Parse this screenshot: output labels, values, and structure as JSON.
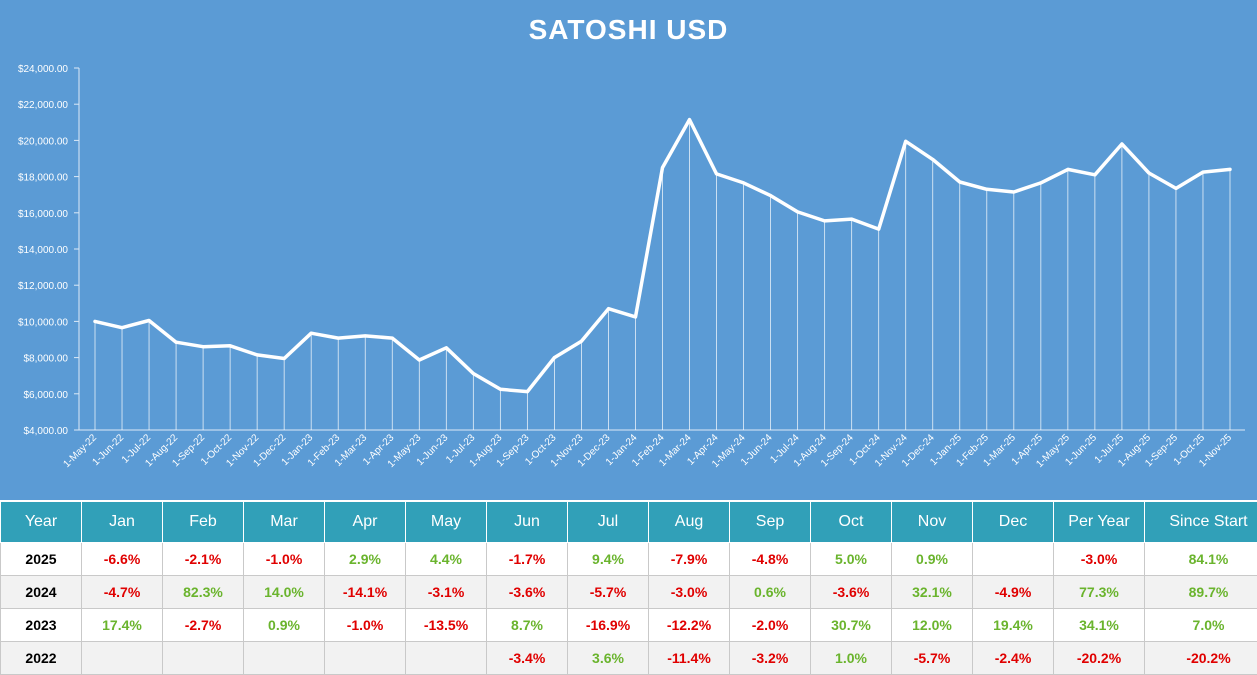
{
  "chart_data": {
    "type": "line",
    "title": "SATOSHI USD",
    "ylim": [
      4000,
      24000
    ],
    "yticks": [
      "$4,000.00",
      "$6,000.00",
      "$8,000.00",
      "$10,000.00",
      "$12,000.00",
      "$14,000.00",
      "$16,000.00",
      "$18,000.00",
      "$20,000.00",
      "$22,000.00",
      "$24,000.00"
    ],
    "x": [
      "1-May-22",
      "1-Jun-22",
      "1-Jul-22",
      "1-Aug-22",
      "1-Sep-22",
      "1-Oct-22",
      "1-Nov-22",
      "1-Dec-22",
      "1-Jan-23",
      "1-Feb-23",
      "1-Mar-23",
      "1-Apr-23",
      "1-May-23",
      "1-Jun-23",
      "1-Jul-23",
      "1-Aug-23",
      "1-Sep-23",
      "1-Oct-23",
      "1-Nov-23",
      "1-Dec-23",
      "1-Jan-24",
      "1-Feb-24",
      "1-Mar-24",
      "1-Apr-24",
      "1-May-24",
      "1-Jun-24",
      "1-Jul-24",
      "1-Aug-24",
      "1-Sep-24",
      "1-Oct-24",
      "1-Nov-24",
      "1-Dec-24",
      "1-Jan-25",
      "1-Feb-25",
      "1-Mar-25",
      "1-Apr-25",
      "1-May-25",
      "1-Jun-25",
      "1-Jul-25",
      "1-Aug-25",
      "1-Sep-25",
      "1-Oct-25",
      "1-Nov-25"
    ],
    "values": [
      10000,
      9650,
      10050,
      8850,
      8600,
      8650,
      8150,
      7950,
      9350,
      9080,
      9200,
      9080,
      7870,
      8540,
      7120,
      6250,
      6120,
      8000,
      8900,
      10700,
      10250,
      18500,
      21150,
      18150,
      17650,
      16950,
      16050,
      15550,
      15650,
      15100,
      19950,
      18950,
      17700,
      17300,
      17150,
      17650,
      18400,
      18100,
      19800,
      18200,
      17350,
      18250,
      18400
    ],
    "grid": false,
    "legend": "none"
  },
  "table": {
    "headers": [
      "Year",
      "Jan",
      "Feb",
      "Mar",
      "Apr",
      "May",
      "Jun",
      "Jul",
      "Aug",
      "Sep",
      "Oct",
      "Nov",
      "Dec",
      "Per Year",
      "Since Start"
    ],
    "rows": [
      [
        "2025",
        "-6.6%",
        "-2.1%",
        "-1.0%",
        "2.9%",
        "4.4%",
        "-1.7%",
        "9.4%",
        "-7.9%",
        "-4.8%",
        "5.0%",
        "0.9%",
        "",
        "-3.0%",
        "84.1%"
      ],
      [
        "2024",
        "-4.7%",
        "82.3%",
        "14.0%",
        "-14.1%",
        "-3.1%",
        "-3.6%",
        "-5.7%",
        "-3.0%",
        "0.6%",
        "-3.6%",
        "32.1%",
        "-4.9%",
        "77.3%",
        "89.7%"
      ],
      [
        "2023",
        "17.4%",
        "-2.7%",
        "0.9%",
        "-1.0%",
        "-13.5%",
        "8.7%",
        "-16.9%",
        "-12.2%",
        "-2.0%",
        "30.7%",
        "12.0%",
        "19.4%",
        "34.1%",
        "7.0%"
      ],
      [
        "2022",
        "",
        "",
        "",
        "",
        "",
        "-3.4%",
        "3.6%",
        "-11.4%",
        "-3.2%",
        "1.0%",
        "-5.7%",
        "-2.4%",
        "-20.2%",
        "-20.2%"
      ]
    ]
  },
  "colors": {
    "chart_background": "#5b9bd5",
    "header_background": "#31a0b8",
    "positive": "#6ab42d",
    "negative": "#e00000",
    "line": "#ffffff"
  }
}
